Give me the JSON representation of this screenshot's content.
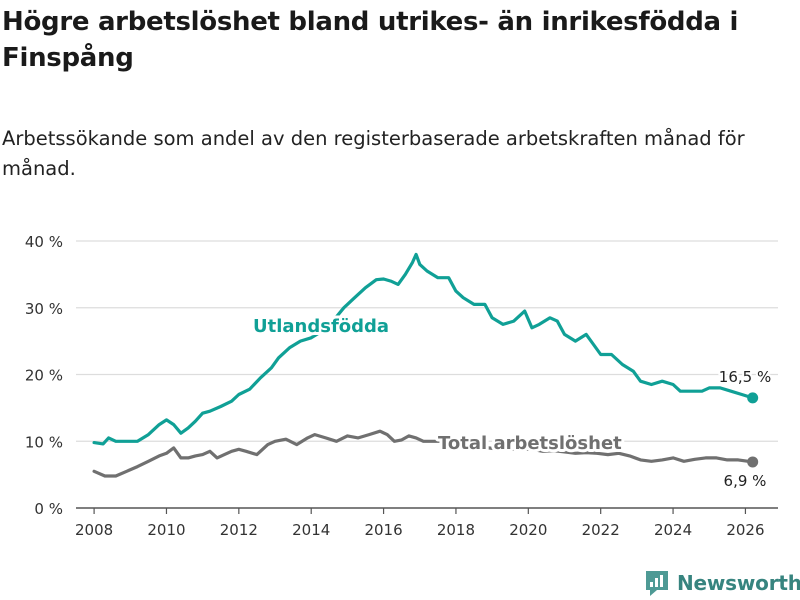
{
  "title": "Högre arbetslöshet bland utrikes- än inrikesfödda i Finspång",
  "subtitle": "Arbetssökande som andel av den registerbaserade arbetskraften månad för månad.",
  "brand": "Newsworthy",
  "colors": {
    "utrikes": "#10a096",
    "total": "#707070",
    "grid": "#dddddd",
    "axis": "#555555",
    "brand": "#37847f"
  },
  "chart_data": {
    "type": "line",
    "title": "Högre arbetslöshet bland utrikes- än inrikesfödda i Finspång",
    "xlabel": "",
    "ylabel": "",
    "xlim": [
      2007.5,
      2026.9
    ],
    "ylim": [
      0,
      40
    ],
    "y_ticks": [
      0,
      10,
      20,
      30,
      40
    ],
    "y_tick_labels": [
      "0 %",
      "10 %",
      "20 %",
      "30 %",
      "40 %"
    ],
    "x_ticks": [
      2008,
      2010,
      2012,
      2014,
      2016,
      2018,
      2020,
      2022,
      2024,
      2026
    ],
    "x_tick_labels": [
      "2008",
      "2010",
      "2012",
      "2014",
      "2016",
      "2018",
      "2020",
      "2022",
      "2024",
      "2026"
    ],
    "grid": true,
    "series": [
      {
        "name": "Utlandsfödda",
        "label": "Utlandsfödda",
        "end_label": "16,5 %",
        "x": [
          2008.0,
          2008.25,
          2008.4,
          2008.6,
          2008.9,
          2009.2,
          2009.5,
          2009.8,
          2010.0,
          2010.2,
          2010.4,
          2010.6,
          2010.8,
          2011.0,
          2011.2,
          2011.5,
          2011.8,
          2012.0,
          2012.3,
          2012.6,
          2012.9,
          2013.1,
          2013.4,
          2013.7,
          2014.0,
          2014.3,
          2014.6,
          2014.9,
          2015.2,
          2015.5,
          2015.8,
          2016.0,
          2016.2,
          2016.4,
          2016.6,
          2016.8,
          2016.9,
          2017.0,
          2017.2,
          2017.5,
          2017.8,
          2018.0,
          2018.2,
          2018.5,
          2018.8,
          2019.0,
          2019.3,
          2019.6,
          2019.9,
          2020.1,
          2020.3,
          2020.6,
          2020.8,
          2021.0,
          2021.3,
          2021.6,
          2021.8,
          2022.0,
          2022.3,
          2022.6,
          2022.9,
          2023.1,
          2023.4,
          2023.7,
          2024.0,
          2024.2,
          2024.5,
          2024.8,
          2025.0,
          2025.3,
          2025.6,
          2025.9,
          2026.2
        ],
        "values": [
          9.8,
          9.6,
          10.5,
          10.0,
          10.0,
          10.0,
          11.0,
          12.5,
          13.2,
          12.5,
          11.2,
          12.0,
          13.0,
          14.2,
          14.5,
          15.2,
          16.0,
          17.0,
          17.8,
          19.5,
          21.0,
          22.5,
          24.0,
          25.0,
          25.5,
          26.5,
          28.0,
          30.0,
          31.5,
          33.0,
          34.2,
          34.3,
          34.0,
          33.5,
          35.0,
          36.8,
          38.0,
          36.5,
          35.5,
          34.5,
          34.5,
          32.5,
          31.5,
          30.5,
          30.5,
          28.5,
          27.5,
          28.0,
          29.5,
          27.0,
          27.5,
          28.5,
          28.0,
          26.0,
          25.0,
          26.0,
          24.5,
          23.0,
          23.0,
          21.5,
          20.5,
          19.0,
          18.5,
          19.0,
          18.5,
          17.5,
          17.5,
          17.5,
          18.0,
          18.0,
          17.5,
          17.0,
          16.5
        ]
      },
      {
        "name": "Total arbetslöshet",
        "label": "Total arbetslöshet",
        "end_label": "6,9 %",
        "x": [
          2008.0,
          2008.3,
          2008.6,
          2008.9,
          2009.2,
          2009.5,
          2009.8,
          2010.0,
          2010.2,
          2010.4,
          2010.6,
          2010.8,
          2011.0,
          2011.2,
          2011.4,
          2011.6,
          2011.8,
          2012.0,
          2012.2,
          2012.5,
          2012.8,
          2013.0,
          2013.3,
          2013.6,
          2013.9,
          2014.1,
          2014.4,
          2014.7,
          2015.0,
          2015.3,
          2015.6,
          2015.9,
          2016.1,
          2016.3,
          2016.5,
          2016.7,
          2016.9,
          2017.1,
          2017.4,
          2017.7,
          2018.0,
          2018.3,
          2018.6,
          2018.9,
          2019.2,
          2019.5,
          2019.8,
          2020.1,
          2020.4,
          2020.7,
          2021.0,
          2021.3,
          2021.6,
          2021.9,
          2022.2,
          2022.5,
          2022.8,
          2023.1,
          2023.4,
          2023.7,
          2024.0,
          2024.3,
          2024.6,
          2024.9,
          2025.2,
          2025.5,
          2025.8,
          2026.2
        ],
        "values": [
          5.5,
          4.8,
          4.8,
          5.5,
          6.2,
          7.0,
          7.8,
          8.2,
          9.0,
          7.5,
          7.5,
          7.8,
          8.0,
          8.5,
          7.5,
          8.0,
          8.5,
          8.8,
          8.5,
          8.0,
          9.5,
          10.0,
          10.3,
          9.5,
          10.5,
          11.0,
          10.5,
          10.0,
          10.8,
          10.5,
          11.0,
          11.5,
          11.0,
          10.0,
          10.2,
          10.8,
          10.5,
          10.0,
          10.0,
          10.0,
          9.8,
          9.5,
          9.2,
          9.0,
          8.8,
          8.8,
          8.8,
          8.8,
          8.5,
          8.6,
          8.4,
          8.2,
          8.3,
          8.2,
          8.0,
          8.2,
          7.8,
          7.2,
          7.0,
          7.2,
          7.5,
          7.0,
          7.3,
          7.5,
          7.5,
          7.2,
          7.2,
          6.9
        ]
      }
    ]
  }
}
